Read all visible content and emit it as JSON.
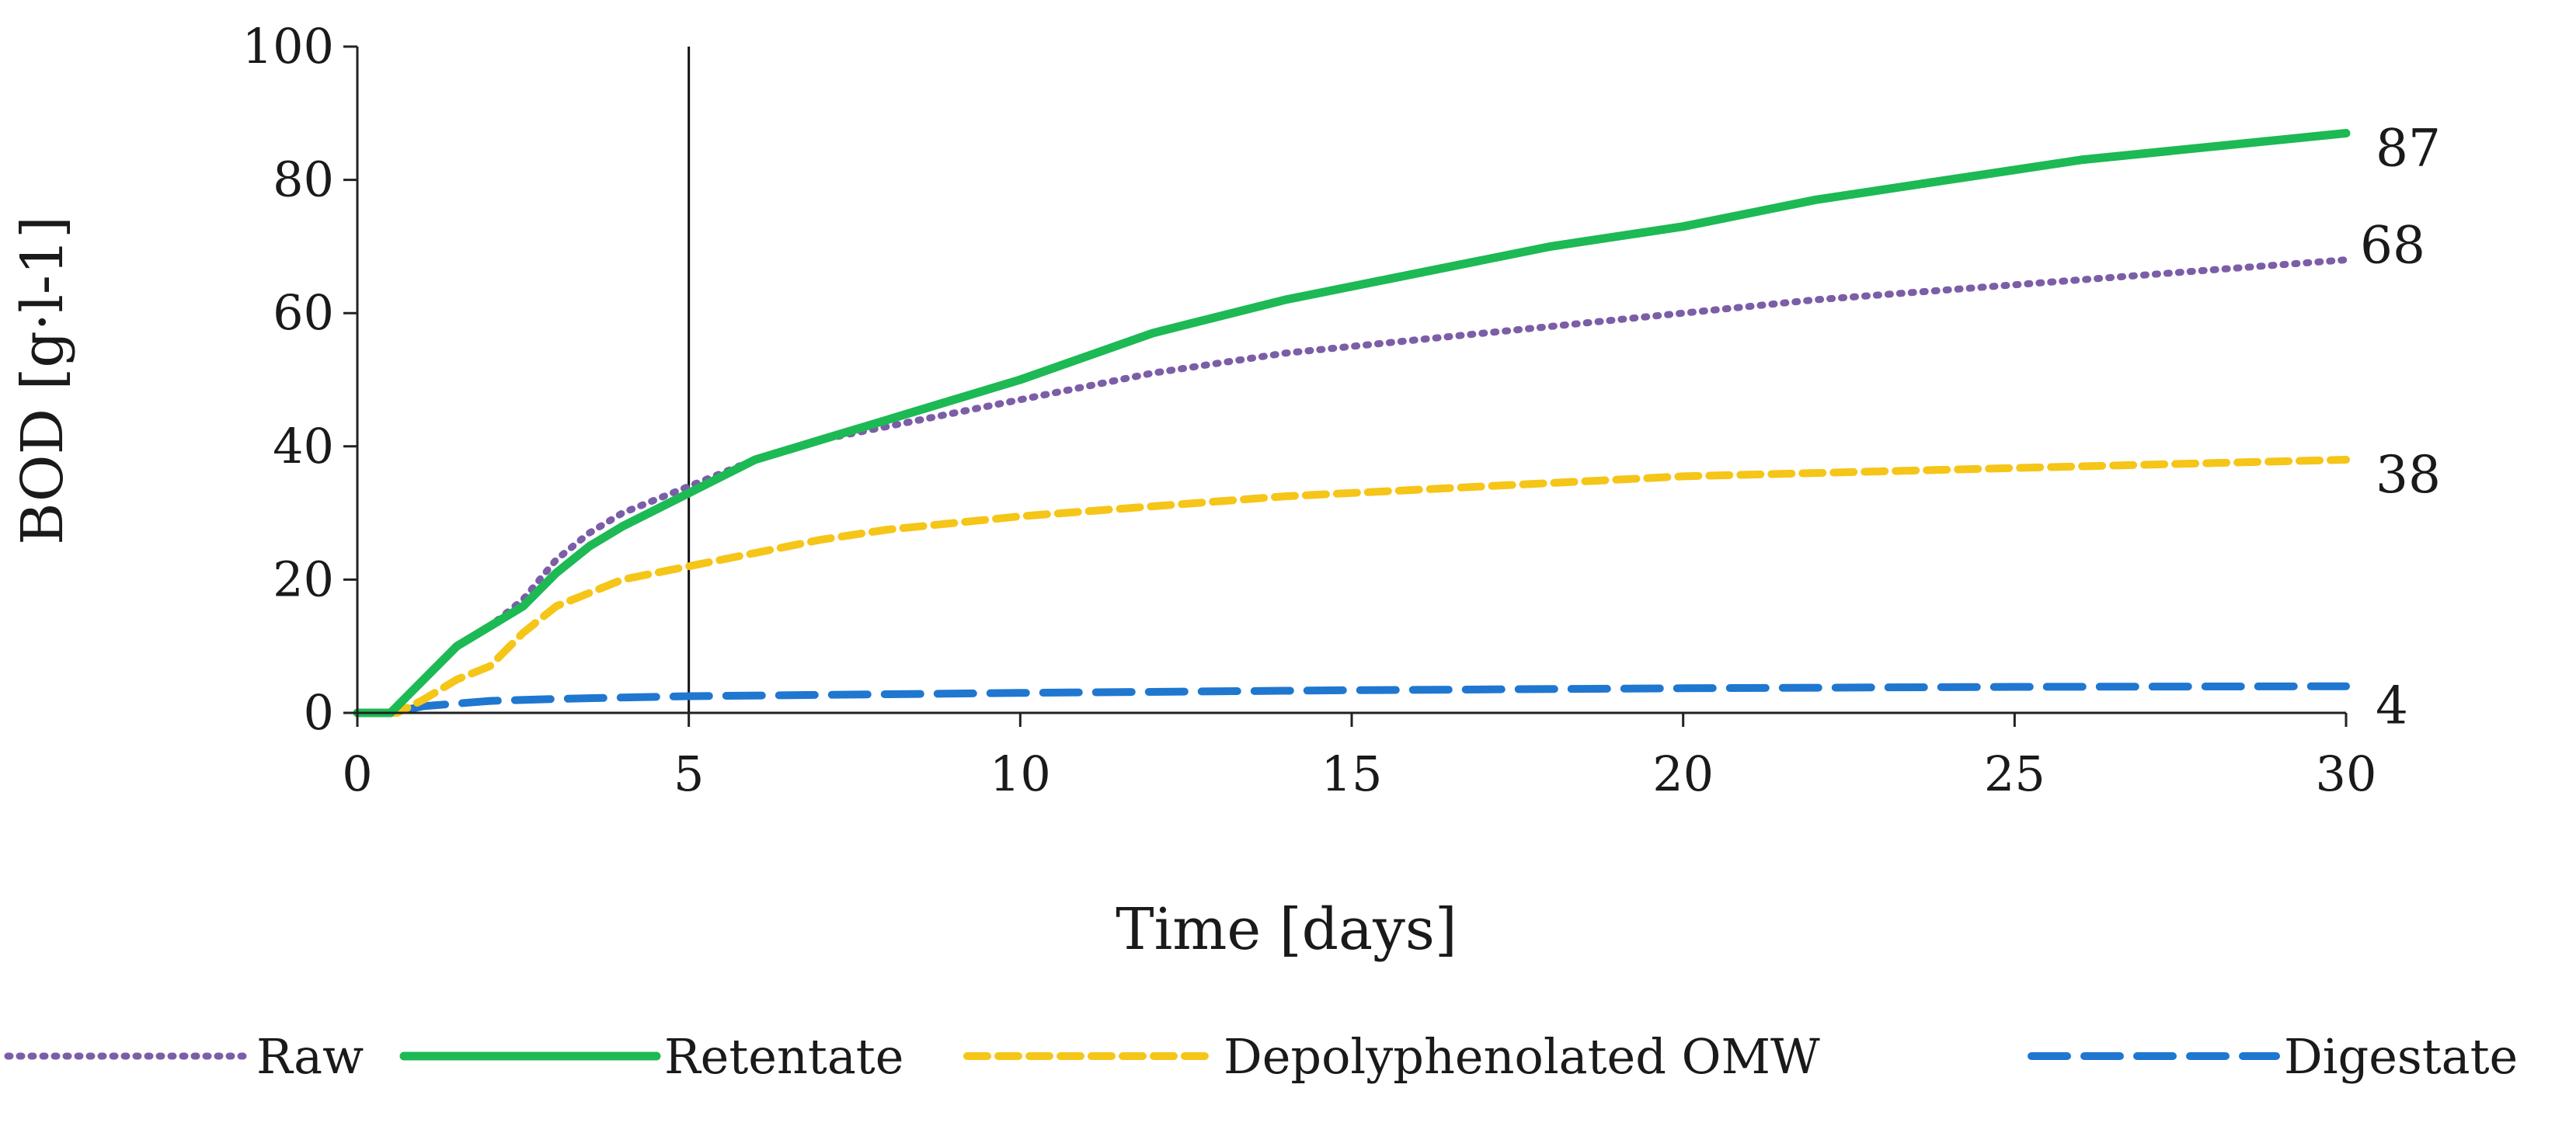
{
  "chart_data": {
    "type": "line",
    "title": "",
    "xlabel": "Time [days]",
    "ylabel": "BOD [g·l-1]",
    "xlim": [
      0,
      30
    ],
    "ylim": [
      0,
      100
    ],
    "x_ticks": [
      0,
      5,
      10,
      15,
      20,
      25,
      30
    ],
    "y_ticks": [
      0,
      20,
      40,
      60,
      80,
      100
    ],
    "grid": false,
    "reference_line_x": 5,
    "legend_position": "bottom",
    "series": [
      {
        "name": "Raw",
        "color": "#7B5EA7",
        "style": "dotted",
        "end_label": "68",
        "x": [
          0,
          0.5,
          1,
          1.5,
          2,
          2.5,
          3,
          3.5,
          4,
          5,
          6,
          7,
          8,
          9,
          10,
          12,
          14,
          16,
          18,
          20,
          22,
          24,
          26,
          28,
          30
        ],
        "y": [
          0,
          0,
          5,
          10,
          13,
          17,
          23,
          27,
          30,
          34,
          38,
          41,
          43,
          45,
          47,
          51,
          54,
          56,
          58,
          60,
          62,
          63.5,
          65,
          66.5,
          68
        ]
      },
      {
        "name": "Retentate",
        "color": "#1DB954",
        "style": "solid",
        "end_label": "87",
        "x": [
          0,
          0.5,
          1,
          1.5,
          2,
          2.5,
          3,
          3.5,
          4,
          5,
          6,
          7,
          8,
          9,
          10,
          12,
          14,
          16,
          18,
          20,
          22,
          24,
          26,
          28,
          30
        ],
        "y": [
          0,
          0,
          5,
          10,
          13,
          16,
          21,
          25,
          28,
          33,
          38,
          41,
          44,
          47,
          50,
          57,
          62,
          66,
          70,
          73,
          77,
          80,
          83,
          85,
          87
        ]
      },
      {
        "name": "Depolyphenolated OMW",
        "color": "#F5C518",
        "style": "dashed",
        "end_label": "38",
        "x": [
          0,
          0.6,
          1,
          1.5,
          2,
          2.5,
          3,
          3.5,
          4,
          5,
          6,
          7,
          8,
          9,
          10,
          12,
          14,
          16,
          18,
          20,
          22,
          24,
          26,
          28,
          30
        ],
        "y": [
          0,
          0,
          2,
          5,
          7,
          12,
          16,
          18,
          20,
          22,
          24,
          26,
          27.5,
          28.5,
          29.5,
          31,
          32.5,
          33.5,
          34.5,
          35.5,
          36,
          36.5,
          37,
          37.5,
          38
        ]
      },
      {
        "name": "Digestate",
        "color": "#1F77D0",
        "style": "long-dashed",
        "end_label": "4",
        "x": [
          0,
          0.5,
          1,
          2,
          3,
          5,
          10,
          15,
          20,
          25,
          30
        ],
        "y": [
          0,
          0,
          1,
          1.8,
          2.1,
          2.5,
          3,
          3.4,
          3.7,
          3.9,
          4
        ]
      }
    ]
  }
}
